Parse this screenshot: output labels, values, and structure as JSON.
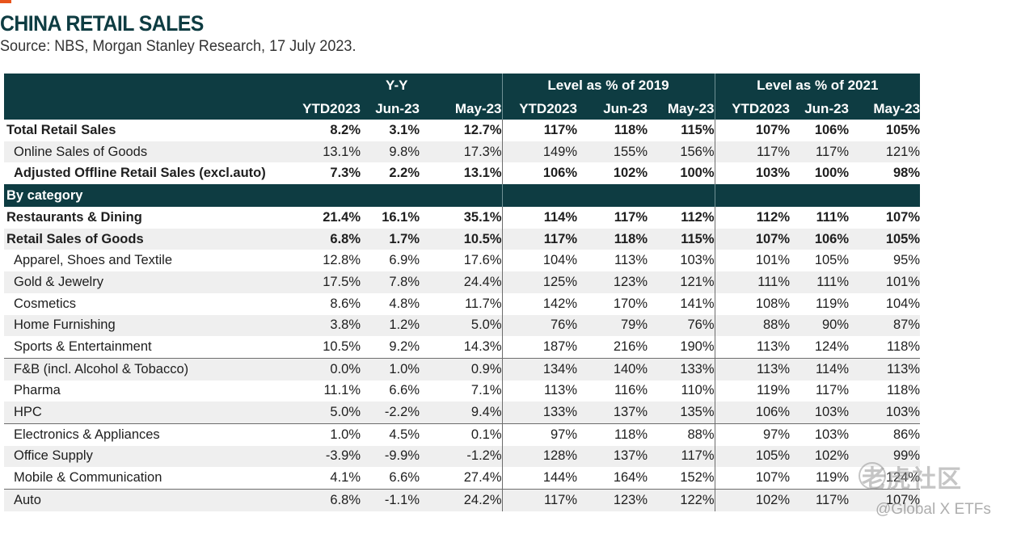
{
  "title": "CHINA RETAIL SALES",
  "subtitle": "Source: NBS, Morgan Stanley Research, 17 July 2023.",
  "groups": [
    "Y-Y",
    "Level as % of 2019",
    "Level as % of 2021"
  ],
  "columns": [
    "YTD2023",
    "Jun-23",
    "May-23",
    "YTD2023",
    "Jun-23",
    "May-23",
    "YTD2023",
    "Jun-23",
    "May-23"
  ],
  "rows": [
    {
      "label": "Total Retail Sales",
      "values": [
        "8.2%",
        "3.1%",
        "12.7%",
        "117%",
        "118%",
        "115%",
        "107%",
        "106%",
        "105%"
      ]
    },
    {
      "label": "Online Sales of Goods",
      "values": [
        "13.1%",
        "9.8%",
        "17.3%",
        "149%",
        "155%",
        "156%",
        "117%",
        "117%",
        "121%"
      ]
    },
    {
      "label": "Adjusted Offline Retail Sales (excl.auto)",
      "values": [
        "7.3%",
        "2.2%",
        "13.1%",
        "106%",
        "102%",
        "100%",
        "103%",
        "100%",
        "98%"
      ]
    },
    {
      "label": "By category"
    },
    {
      "label": "Restaurants & Dining",
      "values": [
        "21.4%",
        "16.1%",
        "35.1%",
        "114%",
        "117%",
        "112%",
        "112%",
        "111%",
        "107%"
      ]
    },
    {
      "label": "Retail Sales of Goods",
      "values": [
        "6.8%",
        "1.7%",
        "10.5%",
        "117%",
        "118%",
        "115%",
        "107%",
        "106%",
        "105%"
      ]
    },
    {
      "label": "Apparel, Shoes and Textile",
      "values": [
        "12.8%",
        "6.9%",
        "17.6%",
        "104%",
        "113%",
        "103%",
        "101%",
        "105%",
        "95%"
      ]
    },
    {
      "label": "Gold & Jewelry",
      "values": [
        "17.5%",
        "7.8%",
        "24.4%",
        "125%",
        "123%",
        "121%",
        "111%",
        "111%",
        "101%"
      ]
    },
    {
      "label": "Cosmetics",
      "values": [
        "8.6%",
        "4.8%",
        "11.7%",
        "142%",
        "170%",
        "141%",
        "108%",
        "119%",
        "104%"
      ]
    },
    {
      "label": "Home Furnishing",
      "values": [
        "3.8%",
        "1.2%",
        "5.0%",
        "76%",
        "79%",
        "76%",
        "88%",
        "90%",
        "87%"
      ]
    },
    {
      "label": "Sports & Entertainment",
      "values": [
        "10.5%",
        "9.2%",
        "14.3%",
        "187%",
        "216%",
        "190%",
        "113%",
        "124%",
        "118%"
      ]
    },
    {
      "label": "F&B (incl. Alcohol & Tobacco)",
      "values": [
        "0.0%",
        "1.0%",
        "0.9%",
        "134%",
        "140%",
        "133%",
        "113%",
        "114%",
        "113%"
      ]
    },
    {
      "label": "Pharma",
      "values": [
        "11.1%",
        "6.6%",
        "7.1%",
        "113%",
        "116%",
        "110%",
        "119%",
        "117%",
        "118%"
      ]
    },
    {
      "label": "HPC",
      "values": [
        "5.0%",
        "-2.2%",
        "9.4%",
        "133%",
        "137%",
        "135%",
        "106%",
        "103%",
        "103%"
      ]
    },
    {
      "label": "Electronics & Appliances",
      "values": [
        "1.0%",
        "4.5%",
        "0.1%",
        "97%",
        "118%",
        "88%",
        "97%",
        "103%",
        "86%"
      ]
    },
    {
      "label": "Office Supply",
      "values": [
        "-3.9%",
        "-9.9%",
        "-1.2%",
        "128%",
        "137%",
        "117%",
        "105%",
        "102%",
        "99%"
      ]
    },
    {
      "label": "Mobile & Communication",
      "values": [
        "4.1%",
        "6.6%",
        "27.4%",
        "144%",
        "164%",
        "152%",
        "107%",
        "119%",
        "124%"
      ]
    },
    {
      "label": "Auto",
      "values": [
        "6.8%",
        "-1.1%",
        "24.2%",
        "117%",
        "123%",
        "122%",
        "102%",
        "117%",
        "107%"
      ]
    }
  ],
  "watermark": {
    "text": "老虎社区",
    "credit": "@Global X ETFs"
  }
}
